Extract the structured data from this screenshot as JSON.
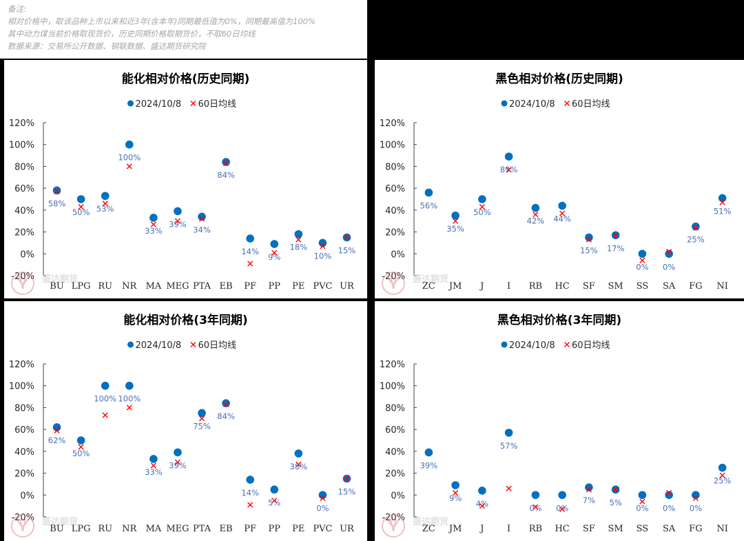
{
  "notes": {
    "lines": [
      "备注:",
      "相对价格中，取该品种上市以来和近3年(含本年)同期最低值为0%，同期最高值为100%",
      "其中动力煤当前价格取现货价，历史同期价格取期货价，不取60日均线",
      "数据来源：交易所公开数据、钢联数据、盛达期货研究院"
    ]
  },
  "colors": {
    "dot": "#0070c0",
    "cross": "#ff0000",
    "label": "#4a6fb5",
    "axis": "#404040"
  },
  "watermark": {
    "text": "盛达期货",
    "sub": "SHENGDA FUTURES CO.,LTD."
  },
  "legend": {
    "dot_label": "2024/10/8",
    "cross_label": "60日均线"
  },
  "chart_data": [
    {
      "id": "energy-hist",
      "type": "scatter",
      "title": "能化相对价格(历史同期)",
      "xlabel": "",
      "ylabel": "",
      "ylim": [
        -20,
        120
      ],
      "yticks": [
        "120%",
        "100%",
        "80%",
        "60%",
        "40%",
        "20%",
        "0%",
        "-20%"
      ],
      "grid": false,
      "legend_position": "top",
      "categories": [
        "BU",
        "LPG",
        "RU",
        "NR",
        "MA",
        "MEG",
        "PTA",
        "EB",
        "PF",
        "PP",
        "PE",
        "PVC",
        "UR"
      ],
      "series": [
        {
          "name": "2024/10/8",
          "marker": "circle",
          "values": [
            58,
            50,
            53,
            100,
            33,
            39,
            34,
            84,
            14,
            9,
            18,
            10,
            15
          ],
          "labels": [
            "58%",
            "50%",
            "53%",
            "100%",
            "33%",
            "39%",
            "34%",
            "84%",
            "14%",
            "9%",
            "18%",
            "10%",
            "15%"
          ]
        },
        {
          "name": "60日均线",
          "marker": "x",
          "values": [
            57,
            43,
            46,
            80,
            27,
            30,
            32,
            83,
            -9,
            1,
            13,
            7,
            15
          ]
        }
      ]
    },
    {
      "id": "black-hist",
      "type": "scatter",
      "title": "黑色相对价格(历史同期)",
      "xlabel": "",
      "ylabel": "",
      "ylim": [
        -20,
        120
      ],
      "yticks": [
        "120%",
        "100%",
        "80%",
        "60%",
        "40%",
        "20%",
        "0%",
        "-20%"
      ],
      "grid": false,
      "legend_position": "top",
      "categories": [
        "ZC",
        "JM",
        "J",
        "I",
        "RB",
        "HC",
        "SF",
        "SM",
        "SS",
        "SA",
        "FG",
        "NI"
      ],
      "series": [
        {
          "name": "2024/10/8",
          "marker": "circle",
          "values": [
            56,
            35,
            50,
            89,
            42,
            44,
            15,
            17,
            0,
            0,
            25,
            51
          ],
          "labels": [
            "56%",
            "35%",
            "50%",
            "89%",
            "42%",
            "44%",
            "15%",
            "17%",
            "0%",
            "0%",
            "25%",
            "51%"
          ]
        },
        {
          "name": "60日均线",
          "marker": "x",
          "values": [
            null,
            30,
            43,
            77,
            36,
            37,
            13,
            17,
            -6,
            2,
            24,
            47
          ]
        }
      ]
    },
    {
      "id": "energy-3y",
      "type": "scatter",
      "title": "能化相对价格(3年同期)",
      "xlabel": "",
      "ylabel": "",
      "ylim": [
        -20,
        120
      ],
      "yticks": [
        "120%",
        "100%",
        "80%",
        "60%",
        "40%",
        "20%",
        "0%",
        "-20%"
      ],
      "grid": false,
      "legend_position": "top",
      "categories": [
        "BU",
        "LPG",
        "RU",
        "NR",
        "MA",
        "MEG",
        "PTA",
        "EB",
        "PF",
        "PP",
        "PE",
        "PVC",
        "UR"
      ],
      "series": [
        {
          "name": "2024/10/8",
          "marker": "circle",
          "values": [
            62,
            50,
            100,
            100,
            33,
            39,
            75,
            84,
            14,
            5,
            38,
            0,
            15
          ],
          "labels": [
            "62%",
            "50%",
            "100%",
            "100%",
            "33%",
            "39%",
            "75%",
            "84%",
            "14%",
            "5%",
            "38%",
            "0%",
            "15%"
          ]
        },
        {
          "name": "60日均线",
          "marker": "x",
          "values": [
            59,
            44,
            73,
            80,
            27,
            30,
            70,
            83,
            -9,
            -5,
            28,
            -3,
            15
          ]
        }
      ]
    },
    {
      "id": "black-3y",
      "type": "scatter",
      "title": "黑色相对价格(3年同期)",
      "xlabel": "",
      "ylabel": "",
      "ylim": [
        -20,
        120
      ],
      "yticks": [
        "120%",
        "100%",
        "80%",
        "60%",
        "40%",
        "20%",
        "0%",
        "-20%"
      ],
      "grid": false,
      "legend_position": "top",
      "categories": [
        "ZC",
        "JM",
        "J",
        "I",
        "RB",
        "HC",
        "SF",
        "SM",
        "SS",
        "SA",
        "FG",
        "NI"
      ],
      "series": [
        {
          "name": "2024/10/8",
          "marker": "circle",
          "values": [
            39,
            9,
            4,
            57,
            0,
            0,
            7,
            5,
            0,
            0,
            0,
            25
          ],
          "labels": [
            "39%",
            "9%",
            "4%",
            "57%",
            "0%",
            "0%",
            "7%",
            "5%",
            "0%",
            "0%",
            "0%",
            "25%"
          ]
        },
        {
          "name": "60日均线",
          "marker": "x",
          "values": [
            null,
            2,
            -10,
            6,
            -11,
            -13,
            5,
            5,
            -6,
            2,
            -3,
            18
          ]
        }
      ]
    }
  ]
}
